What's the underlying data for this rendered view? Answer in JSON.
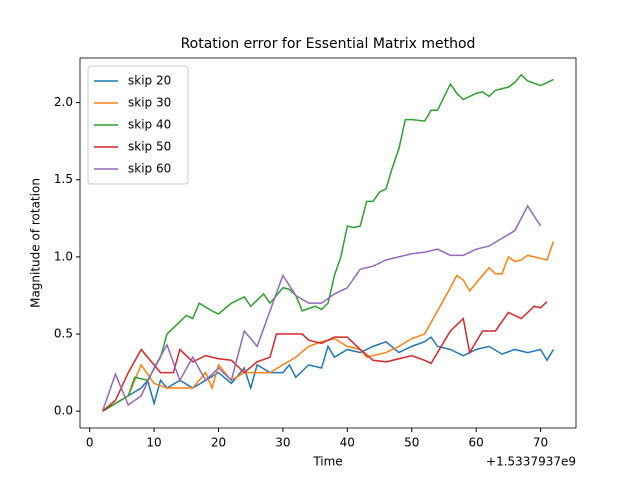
{
  "chart_data": {
    "type": "line",
    "title": "Rotation error for Essential Matrix method",
    "x_label": "Time",
    "y_label": "Magnitude of rotation",
    "x_offset_label": "+1.5337937e9",
    "xlim": [
      -1.5,
      75.5
    ],
    "xticks": [
      0,
      10,
      20,
      30,
      40,
      50,
      60,
      70
    ],
    "ylim": [
      -0.109,
      2.289
    ],
    "yticks": [
      {
        "value": 0,
        "label": "0.0"
      },
      {
        "value": 0.5,
        "label": "0.5"
      },
      {
        "value": 1,
        "label": "1.0"
      },
      {
        "value": 1.5,
        "label": "1.5"
      },
      {
        "value": 2,
        "label": "2.0"
      }
    ],
    "legend": "upper left",
    "grid": false,
    "series": [
      {
        "name": "skip 20",
        "color": "#1f77b4",
        "x": [
          2,
          4,
          6,
          8,
          9,
          10,
          11,
          12,
          14,
          16,
          18,
          20,
          22,
          24,
          25,
          26,
          28,
          30,
          31,
          32,
          34,
          36,
          37,
          38,
          40,
          42,
          44,
          46,
          48,
          50,
          52,
          53,
          54,
          56,
          58,
          60,
          62,
          64,
          66,
          68,
          70,
          71,
          72
        ],
        "values": [
          0,
          0.05,
          0.1,
          0.15,
          0.2,
          0.05,
          0.2,
          0.15,
          0.2,
          0.15,
          0.2,
          0.25,
          0.18,
          0.28,
          0.15,
          0.3,
          0.25,
          0.25,
          0.3,
          0.22,
          0.3,
          0.28,
          0.42,
          0.35,
          0.4,
          0.38,
          0.42,
          0.45,
          0.38,
          0.42,
          0.45,
          0.48,
          0.42,
          0.4,
          0.36,
          0.4,
          0.42,
          0.37,
          0.4,
          0.38,
          0.4,
          0.33,
          0.4
        ]
      },
      {
        "name": "skip 30",
        "color": "#ff7f0e",
        "x": [
          2,
          4,
          6,
          8,
          10,
          12,
          14,
          16,
          18,
          19,
          20,
          22,
          24,
          26,
          28,
          30,
          32,
          34,
          36,
          38,
          40,
          42,
          43,
          46,
          48,
          50,
          52,
          54,
          56,
          57,
          58,
          59,
          61,
          62,
          63,
          64,
          65,
          66,
          67,
          68,
          70,
          71,
          72
        ],
        "values": [
          0,
          0.05,
          0.1,
          0.3,
          0.18,
          0.15,
          0.15,
          0.15,
          0.25,
          0.15,
          0.3,
          0.2,
          0.25,
          0.25,
          0.25,
          0.3,
          0.35,
          0.42,
          0.45,
          0.47,
          0.42,
          0.4,
          0.35,
          0.38,
          0.42,
          0.47,
          0.5,
          0.65,
          0.8,
          0.88,
          0.85,
          0.78,
          0.88,
          0.93,
          0.89,
          0.89,
          1.0,
          0.97,
          0.98,
          1.01,
          0.99,
          0.98,
          1.1
        ]
      },
      {
        "name": "skip 40",
        "color": "#2ca02c",
        "x": [
          2,
          4,
          6,
          7,
          9,
          11,
          12,
          14,
          15,
          16,
          17,
          19,
          20,
          22,
          24,
          25,
          27,
          28,
          30,
          31,
          32,
          33,
          35,
          36,
          37,
          38,
          39,
          40,
          41,
          42,
          43,
          44,
          45,
          46,
          47,
          48,
          49,
          50,
          52,
          53,
          54,
          56,
          57,
          58,
          60,
          61,
          62,
          63,
          65,
          66,
          67,
          68,
          70,
          71,
          72
        ],
        "values": [
          0,
          0.05,
          0.1,
          0.22,
          0.2,
          0.35,
          0.5,
          0.58,
          0.62,
          0.6,
          0.7,
          0.65,
          0.63,
          0.7,
          0.74,
          0.68,
          0.76,
          0.7,
          0.8,
          0.79,
          0.75,
          0.65,
          0.68,
          0.66,
          0.7,
          0.88,
          1.0,
          1.2,
          1.19,
          1.2,
          1.36,
          1.36,
          1.42,
          1.44,
          1.58,
          1.7,
          1.89,
          1.89,
          1.88,
          1.95,
          1.95,
          2.12,
          2.06,
          2.02,
          2.06,
          2.07,
          2.04,
          2.08,
          2.1,
          2.13,
          2.18,
          2.14,
          2.11,
          2.13,
          2.15
        ]
      },
      {
        "name": "skip 50",
        "color": "#d62728",
        "x": [
          2,
          4,
          6,
          8,
          10,
          11,
          13,
          14,
          16,
          18,
          20,
          22,
          24,
          26,
          28,
          29,
          33,
          34,
          36,
          38,
          40,
          42,
          44,
          46,
          48,
          50,
          52,
          53,
          56,
          58,
          59,
          61,
          63,
          65,
          67,
          69,
          70,
          71
        ],
        "values": [
          0,
          0.07,
          0.25,
          0.4,
          0.3,
          0.25,
          0.25,
          0.4,
          0.32,
          0.36,
          0.34,
          0.33,
          0.25,
          0.32,
          0.35,
          0.5,
          0.5,
          0.46,
          0.44,
          0.48,
          0.48,
          0.4,
          0.33,
          0.32,
          0.34,
          0.36,
          0.33,
          0.31,
          0.52,
          0.6,
          0.38,
          0.52,
          0.52,
          0.64,
          0.6,
          0.68,
          0.67,
          0.71
        ]
      },
      {
        "name": "skip 60",
        "color": "#9467bd",
        "x": [
          2,
          4,
          6,
          8,
          10,
          12,
          14,
          16,
          18,
          20,
          22,
          24,
          26,
          30,
          32,
          34,
          36,
          38,
          40,
          42,
          44,
          46,
          48,
          50,
          52,
          54,
          56,
          58,
          60,
          62,
          64,
          66,
          68,
          70
        ],
        "values": [
          0,
          0.24,
          0.04,
          0.1,
          0.28,
          0.43,
          0.2,
          0.35,
          0.2,
          0.28,
          0.2,
          0.52,
          0.42,
          0.88,
          0.75,
          0.7,
          0.7,
          0.76,
          0.8,
          0.92,
          0.94,
          0.98,
          1.0,
          1.02,
          1.03,
          1.05,
          1.01,
          1.01,
          1.05,
          1.07,
          1.12,
          1.17,
          1.33,
          1.2
        ]
      }
    ]
  }
}
